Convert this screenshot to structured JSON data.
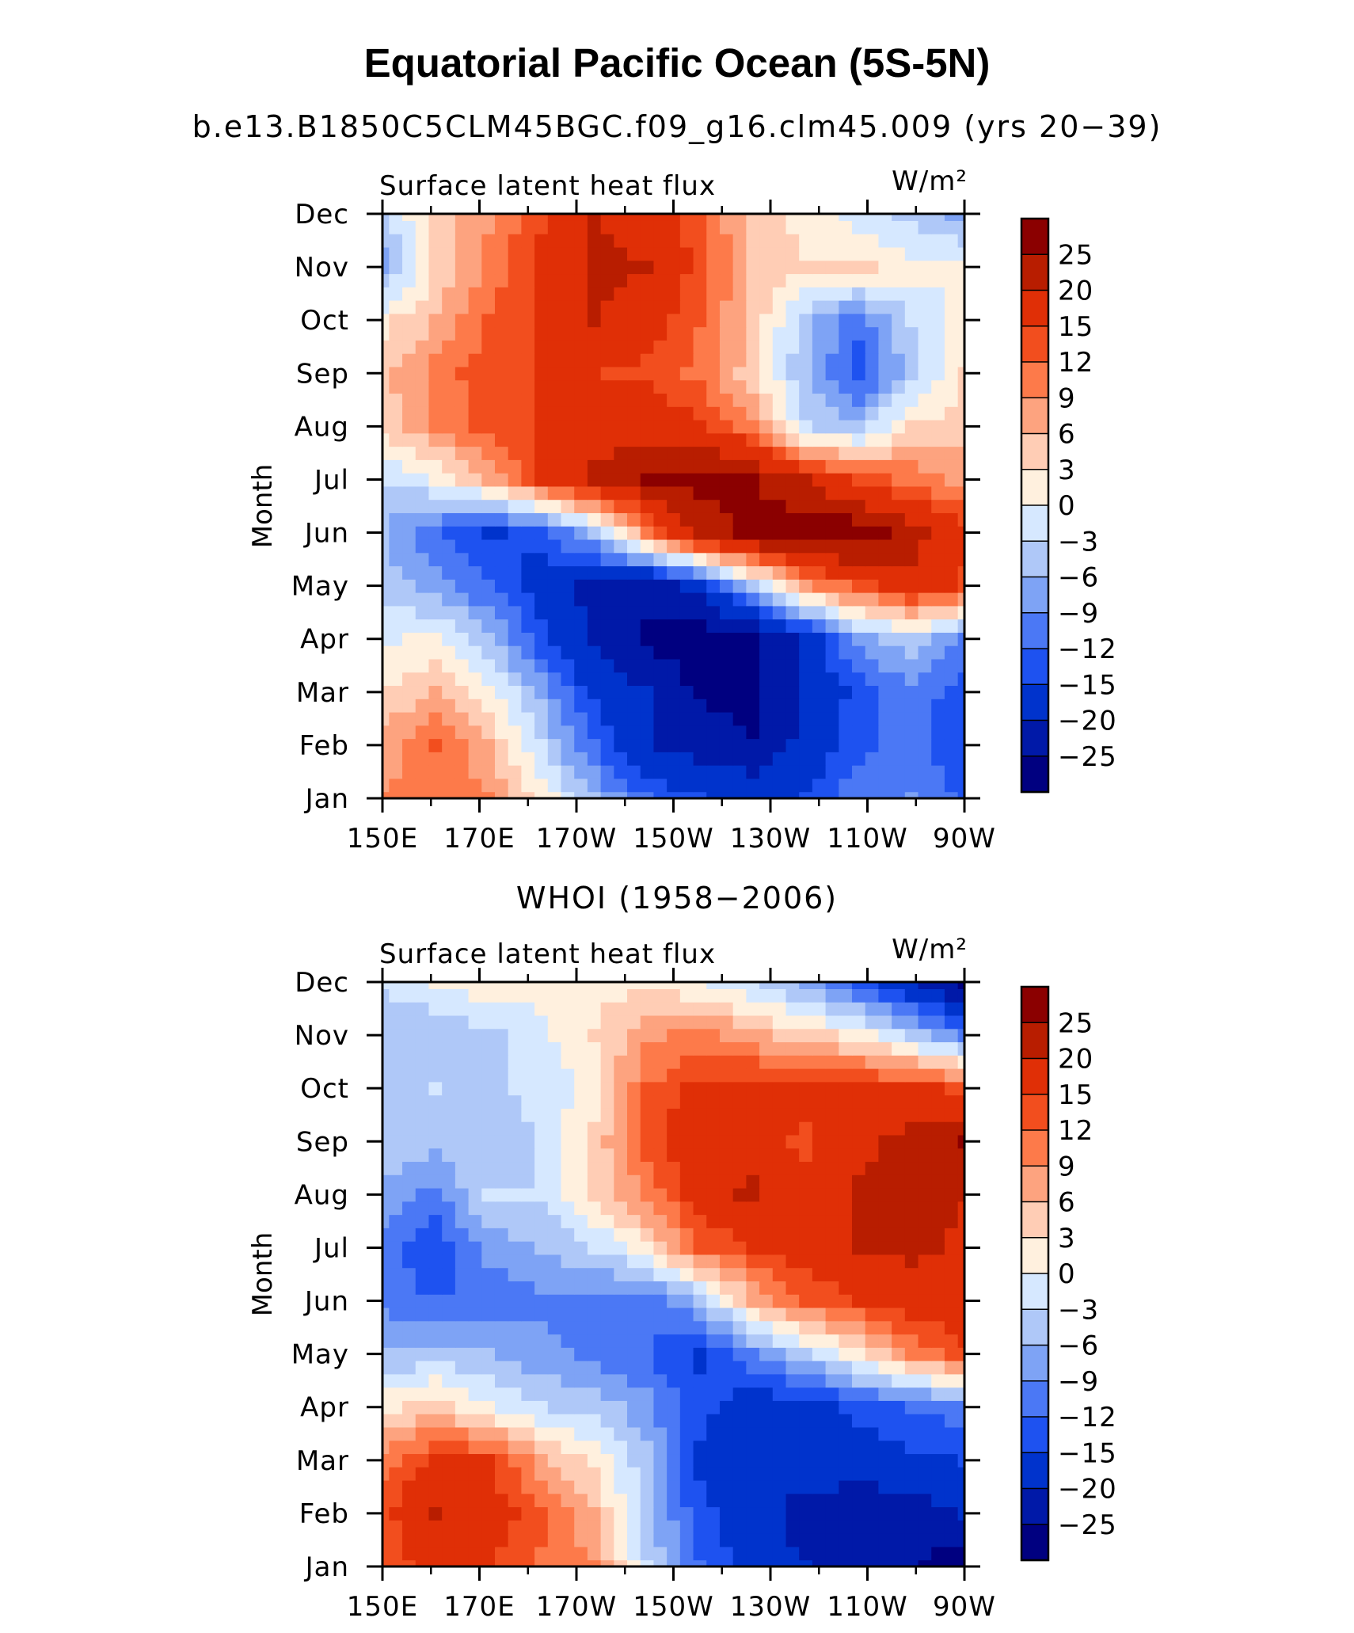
{
  "title": "Equatorial Pacific Ocean (5S-5N)",
  "subtitle": "b.e13.B1850C5CLM45BGC.f09_g16.clm45.009 (yrs 20−39)",
  "chart_data": [
    {
      "type": "heatmap",
      "panel_title": "",
      "variable_label": "Surface latent heat flux",
      "units_label": "W/m²",
      "ylabel": "Month",
      "x_ticks": [
        "150E",
        "170E",
        "170W",
        "150W",
        "130W",
        "110W",
        "90W"
      ],
      "x_lon": [
        150,
        170,
        190,
        210,
        230,
        250,
        270
      ],
      "y_ticks": [
        "Jan",
        "Feb",
        "Mar",
        "Apr",
        "May",
        "Jun",
        "Jul",
        "Aug",
        "Sep",
        "Oct",
        "Nov",
        "Dec"
      ],
      "colorbar_labels": [
        "25",
        "20",
        "15",
        "12",
        "9",
        "6",
        "3",
        "0",
        "−3",
        "−6",
        "−9",
        "−12",
        "−15",
        "−20",
        "−25"
      ],
      "levels": [
        -25,
        -20,
        -15,
        -12,
        -9,
        -6,
        -3,
        0,
        3,
        6,
        9,
        12,
        15,
        20,
        25
      ],
      "colors": [
        "#000080",
        "#0019a8",
        "#0033cc",
        "#1e52f0",
        "#4b78f5",
        "#7ea3f5",
        "#afc8f8",
        "#d6e8ff",
        "#fff0de",
        "#ffcdb5",
        "#fda37f",
        "#fd7a4a",
        "#f24e1e",
        "#e02f06",
        "#b81d00",
        "#8b0000"
      ],
      "z": [
        [
          9,
          11,
          9,
          2,
          -6,
          -12,
          -15,
          -16,
          -15,
          -10,
          -9,
          -13
        ],
        [
          7,
          12,
          6,
          -3,
          -12,
          -20,
          -22,
          -25,
          -18,
          -13,
          -11,
          -14
        ],
        [
          3,
          6,
          1,
          -7,
          -16,
          -20,
          -26,
          -27,
          -19,
          -14,
          -10,
          -14
        ],
        [
          -1,
          1,
          -5,
          -14,
          -21,
          -26,
          -28,
          -26,
          -19,
          -8,
          -4,
          -10
        ],
        [
          -4,
          -8,
          -12,
          -17,
          -22,
          -24,
          -18,
          -5,
          8,
          13,
          18,
          14
        ],
        [
          -6,
          -12,
          -16,
          -14,
          -5,
          9,
          22,
          27,
          29,
          28,
          22,
          16
        ],
        [
          -3,
          0,
          6,
          15,
          21,
          25,
          27,
          25,
          20,
          14,
          11,
          8
        ],
        [
          4,
          9,
          13,
          15,
          17,
          18,
          16,
          10,
          -3,
          -5,
          3,
          5
        ],
        [
          5,
          10,
          14,
          15,
          15,
          14,
          11,
          4,
          -6,
          -14,
          -4,
          3
        ],
        [
          2,
          6,
          12,
          15,
          20,
          17,
          12,
          5,
          -5,
          -11,
          -3,
          1
        ],
        [
          -7,
          3,
          10,
          16,
          21,
          20,
          14,
          5,
          3,
          4,
          1,
          0
        ],
        [
          -4,
          4,
          8,
          14,
          20,
          18,
          12,
          5,
          2,
          -2,
          -4,
          -7
        ]
      ]
    },
    {
      "type": "heatmap",
      "panel_title": "WHOI (1958−2006)",
      "variable_label": "Surface latent heat flux",
      "units_label": "W/m²",
      "ylabel": "Month",
      "x_ticks": [
        "150E",
        "170E",
        "170W",
        "150W",
        "130W",
        "110W",
        "90W"
      ],
      "x_lon": [
        150,
        170,
        190,
        210,
        230,
        250,
        270
      ],
      "y_ticks": [
        "Jan",
        "Feb",
        "Mar",
        "Apr",
        "May",
        "Jun",
        "Jul",
        "Aug",
        "Sep",
        "Oct",
        "Nov",
        "Dec"
      ],
      "colorbar_labels": [
        "25",
        "20",
        "15",
        "12",
        "9",
        "6",
        "3",
        "0",
        "−3",
        "−6",
        "−9",
        "−12",
        "−15",
        "−20",
        "−25"
      ],
      "levels": [
        -25,
        -20,
        -15,
        -12,
        -9,
        -6,
        -3,
        0,
        3,
        6,
        9,
        12,
        15,
        20,
        25
      ],
      "colors": [
        "#000080",
        "#0019a8",
        "#0033cc",
        "#1e52f0",
        "#4b78f5",
        "#7ea3f5",
        "#afc8f8",
        "#d6e8ff",
        "#fff0de",
        "#ffcdb5",
        "#fda37f",
        "#fd7a4a",
        "#f24e1e",
        "#e02f06",
        "#b81d00",
        "#8b0000"
      ],
      "z": [
        [
          12,
          17,
          15,
          11,
          9,
          -3,
          -12,
          -17,
          -20,
          -22,
          -25,
          -28
        ],
        [
          14,
          20,
          18,
          13,
          6,
          -5,
          -14,
          -18,
          -22,
          -24,
          -22,
          -20
        ],
        [
          10,
          16,
          15,
          7,
          2,
          -5,
          -16,
          -18,
          -17,
          -17,
          -16,
          -15
        ],
        [
          2,
          5,
          0,
          -3,
          -4,
          -8,
          -14,
          -17,
          -18,
          -14,
          -12,
          -10
        ],
        [
          -6,
          -5,
          -6,
          -8,
          -10,
          -12,
          -16,
          -10,
          -4,
          2,
          9,
          14
        ],
        [
          -10,
          -12,
          -12,
          -10,
          -10,
          -12,
          -6,
          6,
          12,
          15,
          18,
          18
        ],
        [
          -11,
          -15,
          -8,
          -6,
          -3,
          2,
          12,
          15,
          17,
          20,
          21,
          19
        ],
        [
          -7,
          -10,
          -3,
          -3,
          3,
          10,
          17,
          21,
          16,
          21,
          22,
          20
        ],
        [
          -4,
          -5,
          -4,
          -3,
          4,
          13,
          19,
          17,
          14,
          18,
          22,
          25
        ],
        [
          -5,
          -3,
          -4,
          -2,
          1,
          12,
          16,
          17,
          16,
          16,
          16,
          14
        ],
        [
          -4,
          -6,
          -4,
          -1,
          3,
          8,
          10,
          7,
          4,
          2,
          -4,
          -10
        ],
        [
          -3,
          0,
          2,
          1,
          2,
          2,
          0,
          -3,
          -7,
          -13,
          -20,
          -26
        ]
      ]
    }
  ]
}
